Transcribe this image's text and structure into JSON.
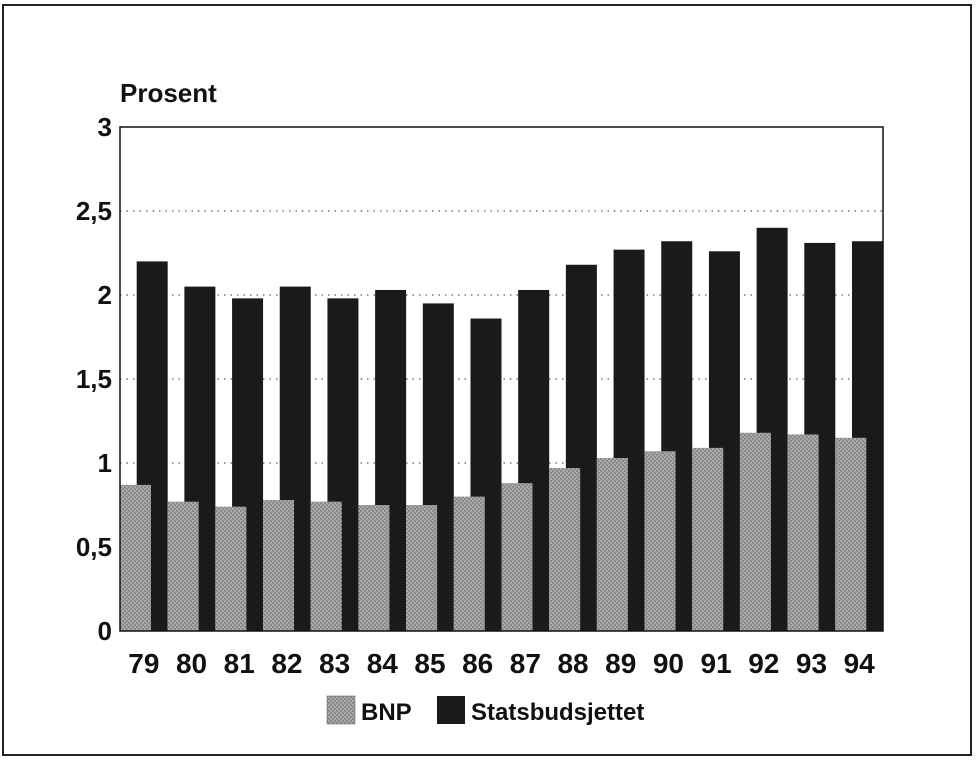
{
  "chart_data": {
    "type": "bar",
    "ylabel": "Prosent",
    "ylim": [
      0,
      3
    ],
    "yticks": [
      "0",
      "0,5",
      "1",
      "1,5",
      "2",
      "2,5",
      "3"
    ],
    "ytick_values": [
      0,
      0.5,
      1,
      1.5,
      2,
      2.5,
      3
    ],
    "categories": [
      "79",
      "80",
      "81",
      "82",
      "83",
      "84",
      "85",
      "86",
      "87",
      "88",
      "89",
      "90",
      "91",
      "92",
      "93",
      "94"
    ],
    "series": [
      {
        "name": "BNP",
        "values": [
          0.87,
          0.77,
          0.74,
          0.78,
          0.77,
          0.75,
          0.75,
          0.8,
          0.88,
          0.97,
          1.03,
          1.07,
          1.09,
          1.18,
          1.17,
          1.15
        ]
      },
      {
        "name": "Statsbudsjettet",
        "values": [
          2.2,
          2.05,
          1.98,
          2.05,
          1.98,
          2.03,
          1.95,
          1.86,
          2.03,
          2.18,
          2.27,
          2.32,
          2.26,
          2.4,
          2.31,
          2.32
        ]
      }
    ],
    "grid": "dotted horizontal",
    "legend_position": "bottom-center",
    "colors": {
      "BNP": "#9a9a9a",
      "Statsbudsjettet": "#1a1a1a"
    }
  }
}
